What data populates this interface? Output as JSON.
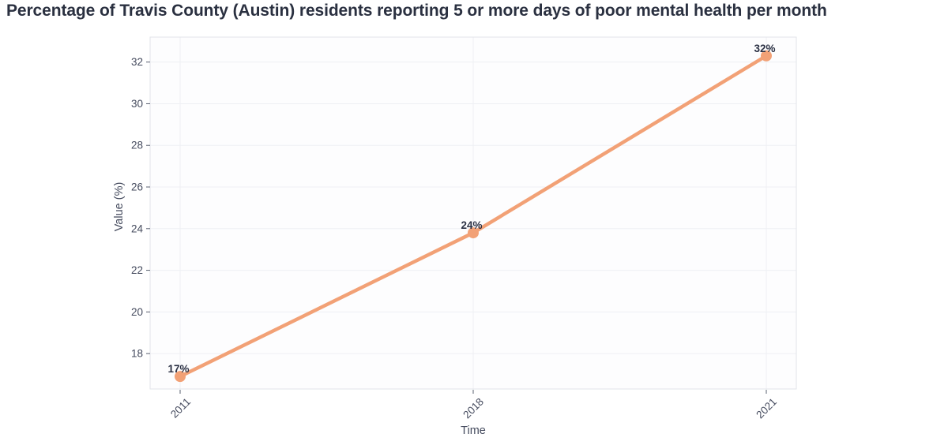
{
  "chart_data": {
    "type": "line",
    "title": "Percentage of Travis County (Austin) residents reporting 5 or more days of poor mental health per month",
    "xlabel": "Time",
    "ylabel": "Value (%)",
    "categories": [
      "2011",
      "2018",
      "2021"
    ],
    "values": [
      16.9,
      23.8,
      32.3
    ],
    "point_labels": [
      "17%",
      "24%",
      "32%"
    ],
    "yticks": [
      18,
      20,
      22,
      24,
      26,
      28,
      30,
      32
    ],
    "ylim": [
      16.3,
      33.2
    ],
    "grid": true,
    "legend": "none",
    "x_tick_rotation": -45,
    "line_color": "#F2A176",
    "marker_color": "#F2A176"
  },
  "colors": {
    "title_text": "#2A3040",
    "axis_text": "#454B5E",
    "point_label_text": "#2B3144",
    "grid_line": "#EEF0F4",
    "plot_border": "#E2E4E9",
    "plot_background": "#FDFDFE",
    "tick_mark": "#5A6070",
    "page_background": "#FFFFFF"
  }
}
